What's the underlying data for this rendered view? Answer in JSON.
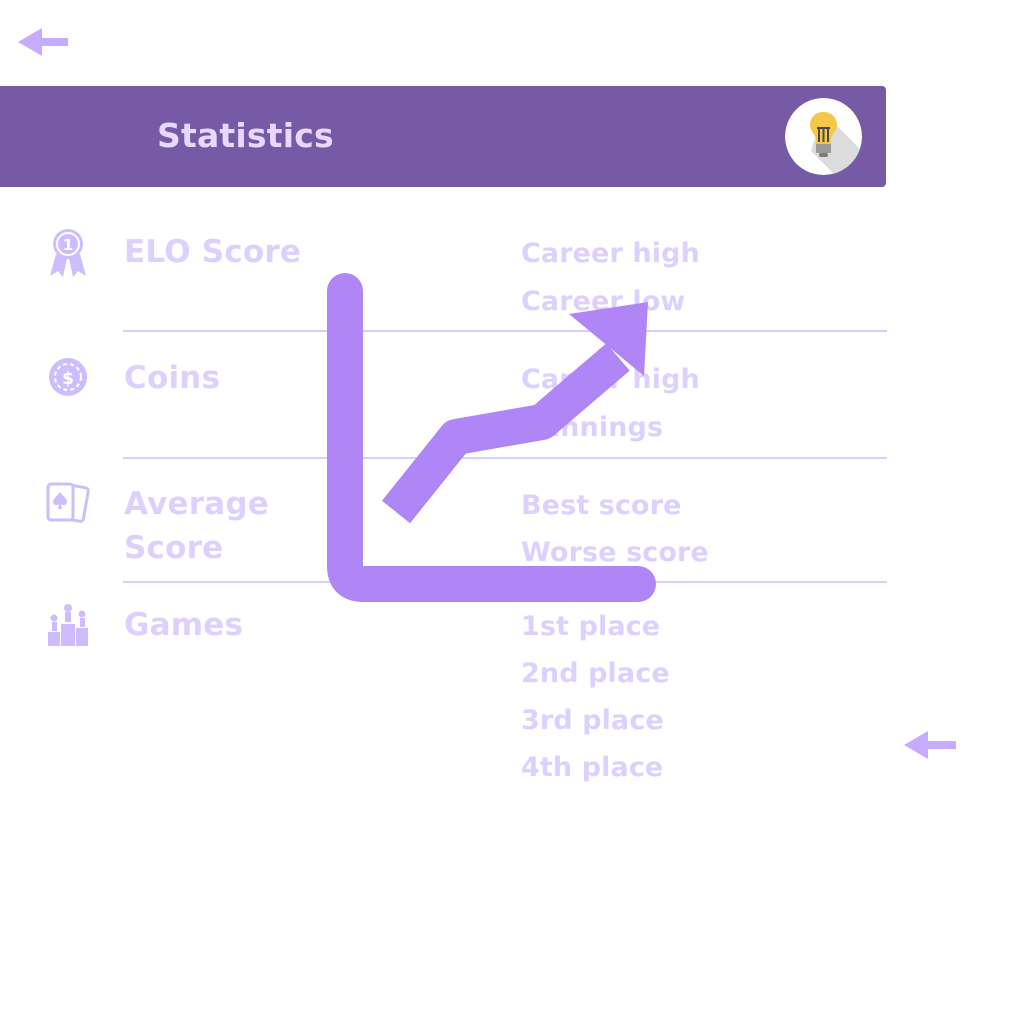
{
  "header": {
    "title": "Statistics",
    "hint_icon": "lightbulb-icon"
  },
  "navigation": {
    "back_icon": "arrow-left-icon"
  },
  "sections": [
    {
      "label": "ELO Score",
      "icon": "medal-ribbon-icon",
      "stats": [
        "Career high",
        "Career low"
      ]
    },
    {
      "label": "Coins",
      "icon": "coin-icon",
      "stats": [
        "Career high",
        "Winnings"
      ]
    },
    {
      "label_line1": "Average",
      "label_line2": "Score",
      "icon": "playing-cards-icon",
      "stats": [
        "Best score",
        "Worse score"
      ]
    },
    {
      "label": "Games",
      "icon": "podium-icon",
      "stats": [
        "1st place",
        "2nd place",
        "3rd place",
        "4th place"
      ]
    }
  ],
  "overlay": {
    "icon": "trend-chart-icon"
  },
  "colors": {
    "header_bg": "#765aa6",
    "header_text": "#e6d8ff",
    "label_text": "#ddd0ff",
    "divider": "#d9ccff",
    "accent": "#b086f6",
    "arrow": "#c6abff",
    "icon": "#cdbdff"
  }
}
